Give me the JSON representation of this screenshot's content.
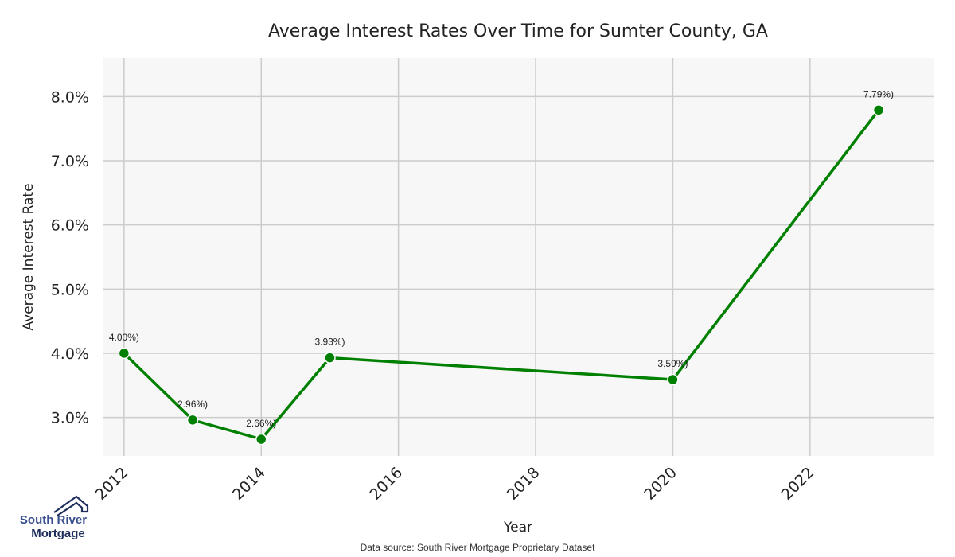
{
  "chart_data": {
    "type": "line",
    "title": "Average Interest Rates Over Time for Sumter County, GA",
    "xlabel": "Year",
    "ylabel": "Average Interest Rate",
    "x": [
      2012,
      2013,
      2014,
      2015,
      2020,
      2023
    ],
    "series": [
      {
        "values": [
          4.0,
          2.96,
          2.66,
          3.93,
          3.59,
          7.79
        ],
        "labels": [
          "4.00%)",
          "2.96%)",
          "2.66%)",
          "3.93%)",
          "3.59%)",
          "7.79%)"
        ],
        "color": "#008000"
      }
    ],
    "xticks": [
      2012,
      2014,
      2016,
      2018,
      2020,
      2022
    ],
    "xtick_labels": [
      "2012",
      "2014",
      "2016",
      "2018",
      "2020",
      "2022"
    ],
    "yticks": [
      3.0,
      4.0,
      5.0,
      6.0,
      7.0,
      8.0
    ],
    "ytick_labels": [
      "3.0%",
      "4.0%",
      "5.0%",
      "6.0%",
      "7.0%",
      "8.0%"
    ],
    "xlim": [
      2011.7,
      2023.8
    ],
    "ylim": [
      2.4,
      8.6
    ],
    "grid": true,
    "colors": {
      "line": "#008000",
      "plot_bg": "#f7f7f7",
      "grid": "#cccccc"
    }
  },
  "source_text": "Data source: South River Mortgage Proprietary Dataset",
  "logo": {
    "line1": "South River",
    "line2": "Mortgage",
    "colors": {
      "line1": "#3a4f8f",
      "line2": "#1f2e5c"
    }
  }
}
